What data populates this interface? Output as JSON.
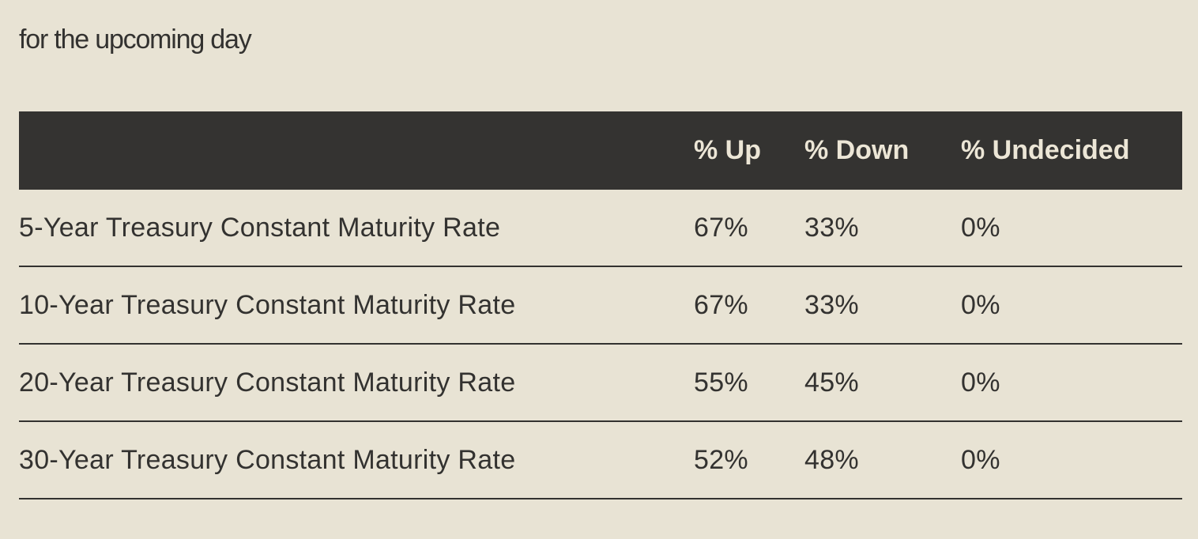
{
  "subtitle": "for the upcoming day",
  "table": {
    "headers": [
      "",
      "% Up",
      "% Down",
      "% Undecided"
    ],
    "rows": [
      {
        "name": "5-Year Treasury Constant Maturity Rate",
        "up": "67%",
        "down": "33%",
        "undecided": "0%"
      },
      {
        "name": "10-Year Treasury Constant Maturity Rate",
        "up": "67%",
        "down": "33%",
        "undecided": "0%"
      },
      {
        "name": "20-Year Treasury Constant Maturity Rate",
        "up": "55%",
        "down": "45%",
        "undecided": "0%"
      },
      {
        "name": "30-Year Treasury Constant Maturity Rate",
        "up": "52%",
        "down": "48%",
        "undecided": "0%"
      }
    ]
  },
  "colors": {
    "background": "#e8e3d4",
    "header_background": "#343331",
    "header_text": "#ece6d6",
    "text": "#333230"
  }
}
